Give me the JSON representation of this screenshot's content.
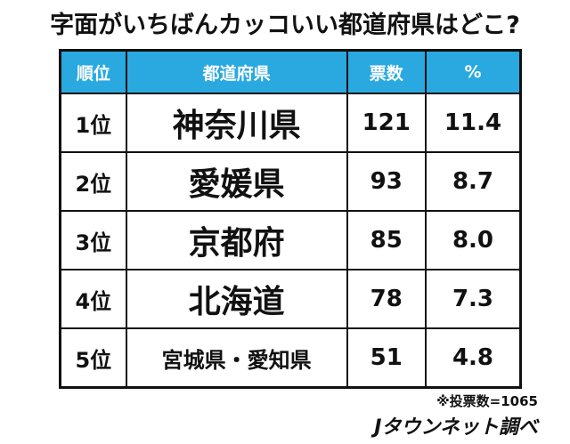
{
  "header": {
    "title": "字面がいちばんカッコいい都道府県はどこ?"
  },
  "table": {
    "columns": [
      "順位",
      "都道府県",
      "票数",
      "%"
    ],
    "rows": [
      [
        "1位",
        "神奈川県",
        "121",
        "11.4"
      ],
      [
        "2位",
        "愛媛県",
        "93",
        "8.7"
      ],
      [
        "3位",
        "京都府",
        "85",
        "8.0"
      ],
      [
        "4位",
        "北海道",
        "78",
        "7.3"
      ],
      [
        "5位",
        "宮城県・愛知県",
        "51",
        "4.8"
      ]
    ]
  },
  "footer": {
    "note": "※投票数=1065",
    "source": "Jタウンネット調べ"
  }
}
